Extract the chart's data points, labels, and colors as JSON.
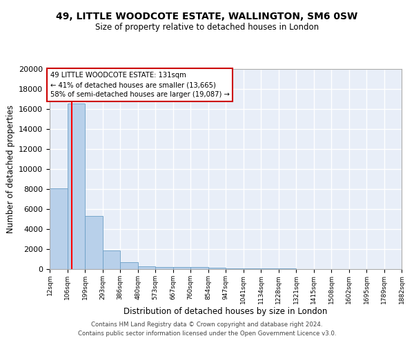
{
  "title": "49, LITTLE WOODCOTE ESTATE, WALLINGTON, SM6 0SW",
  "subtitle": "Size of property relative to detached houses in London",
  "xlabel": "Distribution of detached houses by size in London",
  "ylabel": "Number of detached properties",
  "bin_labels": [
    "12sqm",
    "106sqm",
    "199sqm",
    "293sqm",
    "386sqm",
    "480sqm",
    "573sqm",
    "667sqm",
    "760sqm",
    "854sqm",
    "947sqm",
    "1041sqm",
    "1134sqm",
    "1228sqm",
    "1321sqm",
    "1415sqm",
    "1508sqm",
    "1602sqm",
    "1695sqm",
    "1789sqm",
    "1882sqm"
  ],
  "bin_edges": [
    12,
    106,
    199,
    293,
    386,
    480,
    573,
    667,
    760,
    854,
    947,
    1041,
    1134,
    1228,
    1321,
    1415,
    1508,
    1602,
    1695,
    1789,
    1882
  ],
  "bar_heights": [
    8050,
    16550,
    5300,
    1850,
    700,
    310,
    215,
    205,
    195,
    155,
    95,
    65,
    50,
    40,
    30,
    25,
    20,
    15,
    12,
    10
  ],
  "bar_color": "#b8d0ea",
  "bar_edge_color": "#6a9ec5",
  "bg_color": "#e8eef8",
  "grid_color": "#ffffff",
  "red_line_x": 131,
  "annotation_title": "49 LITTLE WOODCOTE ESTATE: 131sqm",
  "annotation_line1": "← 41% of detached houses are smaller (13,665)",
  "annotation_line2": "58% of semi-detached houses are larger (19,087) →",
  "annotation_box_color": "#cc0000",
  "ylim": [
    0,
    20000
  ],
  "yticks": [
    0,
    2000,
    4000,
    6000,
    8000,
    10000,
    12000,
    14000,
    16000,
    18000,
    20000
  ],
  "footer_line1": "Contains HM Land Registry data © Crown copyright and database right 2024.",
  "footer_line2": "Contains public sector information licensed under the Open Government Licence v3.0."
}
